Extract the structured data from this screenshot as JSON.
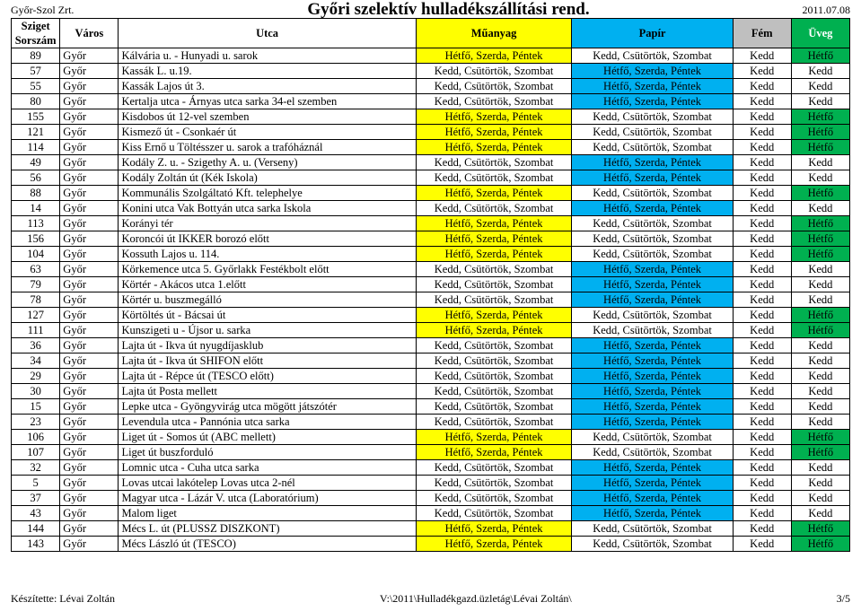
{
  "header": {
    "company": "Győr-Szol Zrt.",
    "title": "Győri szelektív hulladékszállítási rend.",
    "date": "2011.07.08"
  },
  "footer": {
    "left": "Készítette: Lévai Zoltán",
    "center": "V:\\2011\\Hulladékgazd.üzletág\\Lévai Zoltán\\",
    "right": "3/5"
  },
  "colors": {
    "green": "#00b050",
    "yellow": "#ffff00",
    "blue": "#00b0f0",
    "gray": "#bfbfbf",
    "white": "#ffffff"
  },
  "columns": [
    "Sziget Sorszám",
    "Város",
    "Utca",
    "Műanyag",
    "Papír",
    "Fém",
    "Üveg"
  ],
  "schedules": {
    "HSP": "Hétfő, Szerda, Péntek",
    "KCS": "Kedd, Csütörtök, Szombat",
    "K": "Kedd",
    "H": "Hétfő"
  },
  "rows": [
    {
      "n": "89",
      "u": "Kálvária u. - Hunyadi u. sarok",
      "m": "HSP",
      "p": "KCS",
      "f": "K",
      "v": "H"
    },
    {
      "n": "57",
      "u": "Kassák L. u.19.",
      "m": "KCS",
      "p": "HSP",
      "f": "K",
      "v": "K"
    },
    {
      "n": "55",
      "u": "Kassák Lajos út 3.",
      "m": "KCS",
      "p": "HSP",
      "f": "K",
      "v": "K"
    },
    {
      "n": "80",
      "u": "Kertalja utca - Árnyas utca sarka 34-el szemben",
      "m": "KCS",
      "p": "HSP",
      "f": "K",
      "v": "K"
    },
    {
      "n": "155",
      "u": "Kisdobos út 12-vel szemben",
      "m": "HSP",
      "p": "KCS",
      "f": "K",
      "v": "H"
    },
    {
      "n": "121",
      "u": "Kismező út - Csonkaér út",
      "m": "HSP",
      "p": "KCS",
      "f": "K",
      "v": "H"
    },
    {
      "n": "114",
      "u": "Kiss Ernő u Töltésszer u. sarok a trafóháznál",
      "m": "HSP",
      "p": "KCS",
      "f": "K",
      "v": "H"
    },
    {
      "n": "49",
      "u": "Kodály Z. u. - Szigethy A. u. (Verseny)",
      "m": "KCS",
      "p": "HSP",
      "f": "K",
      "v": "K"
    },
    {
      "n": "56",
      "u": "Kodály Zoltán út (Kék Iskola)",
      "m": "KCS",
      "p": "HSP",
      "f": "K",
      "v": "K"
    },
    {
      "n": "88",
      "u": "Kommunális Szolgáltató Kft. telephelye",
      "m": "HSP",
      "p": "KCS",
      "f": "K",
      "v": "H"
    },
    {
      "n": "14",
      "u": "Konini utca Vak Bottyán utca sarka  Iskola",
      "m": "KCS",
      "p": "HSP",
      "f": "K",
      "v": "K"
    },
    {
      "n": "113",
      "u": "Korányi tér",
      "m": "HSP",
      "p": "KCS",
      "f": "K",
      "v": "H"
    },
    {
      "n": "156",
      "u": "Koroncói út IKKER borozó előtt",
      "m": "HSP",
      "p": "KCS",
      "f": "K",
      "v": "H"
    },
    {
      "n": "104",
      "u": "Kossuth Lajos u. 114.",
      "m": "HSP",
      "p": "KCS",
      "f": "K",
      "v": "H"
    },
    {
      "n": "63",
      "u": "Körkemence utca 5. Győrlakk Festékbolt előtt",
      "m": "KCS",
      "p": "HSP",
      "f": "K",
      "v": "K"
    },
    {
      "n": "79",
      "u": "Körtér - Akácos utca 1.előtt",
      "m": "KCS",
      "p": "HSP",
      "f": "K",
      "v": "K"
    },
    {
      "n": "78",
      "u": "Körtér u. buszmegálló",
      "m": "KCS",
      "p": "HSP",
      "f": "K",
      "v": "K"
    },
    {
      "n": "127",
      "u": "Körtöltés út - Bácsai út",
      "m": "HSP",
      "p": "KCS",
      "f": "K",
      "v": "H"
    },
    {
      "n": "111",
      "u": "Kunszigeti u - Újsor u. sarka",
      "m": "HSP",
      "p": "KCS",
      "f": "K",
      "v": "H"
    },
    {
      "n": "36",
      "u": "Lajta út - Ikva út nyugdíjasklub",
      "m": "KCS",
      "p": "HSP",
      "f": "K",
      "v": "K"
    },
    {
      "n": "34",
      "u": "Lajta út - Ikva út SHIFON előtt",
      "m": "KCS",
      "p": "HSP",
      "f": "K",
      "v": "K"
    },
    {
      "n": "29",
      "u": "Lajta út - Répce út (TESCO előtt)",
      "m": "KCS",
      "p": "HSP",
      "f": "K",
      "v": "K"
    },
    {
      "n": "30",
      "u": "Lajta út Posta mellett",
      "m": "KCS",
      "p": "HSP",
      "f": "K",
      "v": "K"
    },
    {
      "n": "15",
      "u": "Lepke utca - Gyöngyvirág utca mögött játszótér",
      "m": "KCS",
      "p": "HSP",
      "f": "K",
      "v": "K"
    },
    {
      "n": "23",
      "u": "Levendula utca - Pannónia utca sarka",
      "m": "KCS",
      "p": "HSP",
      "f": "K",
      "v": "K"
    },
    {
      "n": "106",
      "u": "Liget út - Somos út (ABC mellett)",
      "m": "HSP",
      "p": "KCS",
      "f": "K",
      "v": "H"
    },
    {
      "n": "107",
      "u": "Liget út buszforduló",
      "m": "HSP",
      "p": "KCS",
      "f": "K",
      "v": "H"
    },
    {
      "n": "32",
      "u": "Lomnic utca - Cuha utca sarka",
      "m": "KCS",
      "p": "HSP",
      "f": "K",
      "v": "K"
    },
    {
      "n": "5",
      "u": "Lovas utcai lakótelep Lovas utca 2-nél",
      "m": "KCS",
      "p": "HSP",
      "f": "K",
      "v": "K"
    },
    {
      "n": "37",
      "u": "Magyar utca - Lázár V. utca (Laboratórium)",
      "m": "KCS",
      "p": "HSP",
      "f": "K",
      "v": "K"
    },
    {
      "n": "43",
      "u": "Malom liget",
      "m": "KCS",
      "p": "HSP",
      "f": "K",
      "v": "K"
    },
    {
      "n": "144",
      "u": "Mécs L. út (PLUSSZ DISZKONT)",
      "m": "HSP",
      "p": "KCS",
      "f": "K",
      "v": "H"
    },
    {
      "n": "143",
      "u": "Mécs László út (TESCO)",
      "m": "HSP",
      "p": "KCS",
      "f": "K",
      "v": "H"
    }
  ]
}
